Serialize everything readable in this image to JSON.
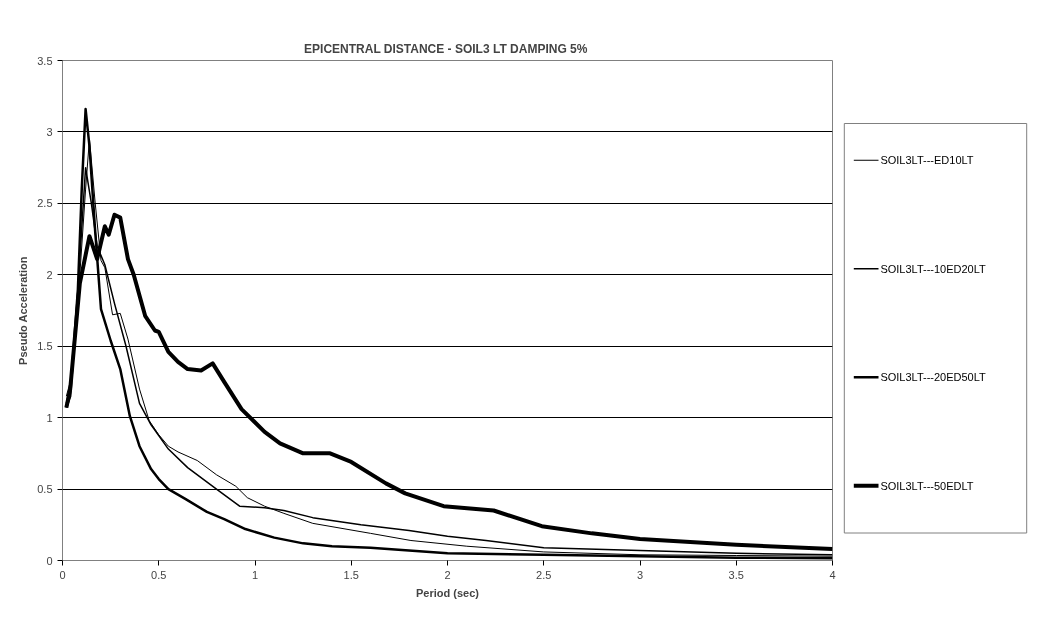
{
  "chart_data": {
    "type": "line",
    "title": "EPICENTRAL DISTANCE - SOIL3 LT  DAMPING 5%",
    "xlabel": "Period (sec)",
    "ylabel": "Pseudo Acceleration",
    "xlim": [
      0,
      4
    ],
    "xticks": [
      0,
      0.5,
      1,
      1.5,
      2,
      2.5,
      3,
      3.5,
      4
    ],
    "ylim": [
      0,
      3.5
    ],
    "yticks": [
      0,
      0.5,
      1,
      1.5,
      2,
      2.5,
      3,
      3.5
    ],
    "grid": "y",
    "legend": "right",
    "marker": "none",
    "line_style": "solid",
    "series": [
      {
        "name": "SOIL3LT---ED10LT",
        "color": "#000000",
        "x": [
          0.02,
          0.05,
          0.09,
          0.12,
          0.14,
          0.17,
          0.2,
          0.22,
          0.26,
          0.3,
          0.34,
          0.4,
          0.45,
          0.5,
          0.55,
          0.6,
          0.7,
          0.8,
          0.9,
          0.96,
          1.05,
          1.15,
          1.3,
          1.6,
          1.81,
          2.1,
          2.5,
          3,
          3.5,
          4
        ],
        "values": [
          1.15,
          1.3,
          2.0,
          2.6,
          2.95,
          2.5,
          2.1,
          2.05,
          1.72,
          1.73,
          1.55,
          1.2,
          0.98,
          0.88,
          0.8,
          0.76,
          0.7,
          0.6,
          0.52,
          0.44,
          0.38,
          0.33,
          0.26,
          0.19,
          0.14,
          0.1,
          0.06,
          0.04,
          0.035,
          0.03
        ]
      },
      {
        "name": "SOIL3LT---10ED20LT",
        "color": "#000000",
        "x": [
          0.02,
          0.05,
          0.08,
          0.12,
          0.15,
          0.18,
          0.22,
          0.27,
          0.33,
          0.4,
          0.46,
          0.55,
          0.65,
          0.8,
          0.92,
          1.05,
          1.15,
          1.3,
          1.55,
          1.8,
          2.0,
          2.2,
          2.5,
          3,
          3.5,
          4
        ],
        "values": [
          1.1,
          1.3,
          1.9,
          2.75,
          2.5,
          2.2,
          2.07,
          1.8,
          1.5,
          1.1,
          0.95,
          0.78,
          0.65,
          0.5,
          0.38,
          0.37,
          0.35,
          0.3,
          0.25,
          0.21,
          0.17,
          0.14,
          0.09,
          0.07,
          0.05,
          0.04
        ]
      },
      {
        "name": "SOIL3LT---20ED50LT",
        "color": "#000000",
        "x": [
          0.02,
          0.04,
          0.08,
          0.1,
          0.12,
          0.14,
          0.17,
          0.2,
          0.25,
          0.3,
          0.35,
          0.4,
          0.46,
          0.5,
          0.55,
          0.64,
          0.75,
          0.84,
          0.95,
          1.1,
          1.25,
          1.4,
          1.6,
          1.8,
          2.0,
          2.5,
          3,
          3.5,
          4
        ],
        "values": [
          1.07,
          1.15,
          1.9,
          2.6,
          3.16,
          2.9,
          2.3,
          1.76,
          1.54,
          1.34,
          1.01,
          0.8,
          0.64,
          0.57,
          0.5,
          0.43,
          0.34,
          0.29,
          0.22,
          0.16,
          0.12,
          0.1,
          0.09,
          0.07,
          0.05,
          0.04,
          0.03,
          0.02,
          0.015
        ]
      },
      {
        "name": "SOIL3LT---50EDLT",
        "color": "#000000",
        "x": [
          0.02,
          0.04,
          0.09,
          0.14,
          0.18,
          0.22,
          0.24,
          0.27,
          0.3,
          0.34,
          0.37,
          0.43,
          0.48,
          0.5,
          0.55,
          0.6,
          0.65,
          0.72,
          0.78,
          0.84,
          0.93,
          1.05,
          1.13,
          1.25,
          1.39,
          1.5,
          1.68,
          1.78,
          1.98,
          2.24,
          2.49,
          2.75,
          3,
          3.5,
          4
        ],
        "values": [
          1.07,
          1.2,
          1.94,
          2.27,
          2.11,
          2.34,
          2.28,
          2.42,
          2.4,
          2.11,
          2.0,
          1.71,
          1.61,
          1.6,
          1.46,
          1.39,
          1.34,
          1.33,
          1.38,
          1.25,
          1.06,
          0.9,
          0.82,
          0.75,
          0.75,
          0.69,
          0.54,
          0.47,
          0.38,
          0.35,
          0.24,
          0.19,
          0.15,
          0.11,
          0.08
        ]
      }
    ]
  }
}
